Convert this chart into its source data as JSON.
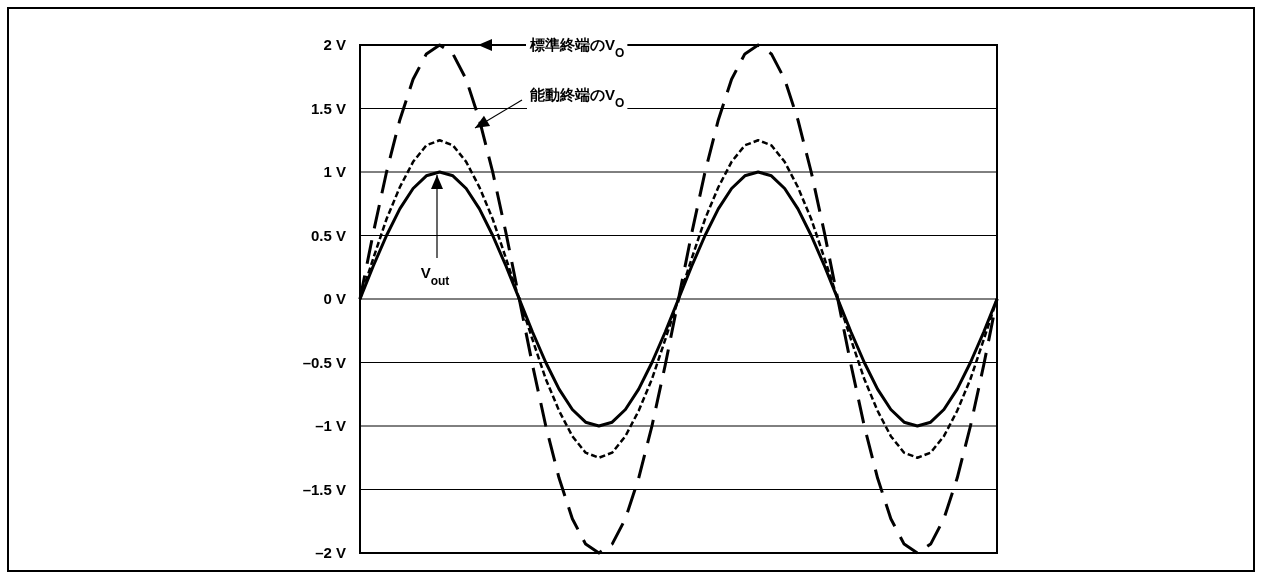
{
  "chart_data": {
    "type": "line",
    "categories": [
      null,
      null,
      null,
      null,
      null,
      null,
      null,
      null,
      null,
      null,
      null,
      null,
      null,
      null,
      null,
      null,
      null,
      null,
      null,
      null,
      null,
      null,
      null,
      null,
      null,
      null,
      null,
      null,
      null,
      null,
      null,
      null,
      null,
      null,
      null,
      null,
      null,
      null,
      null,
      null,
      null,
      null,
      null,
      null,
      null,
      null,
      null,
      null,
      null
    ],
    "series": [
      {
        "color": "#000000",
        "line_style": "dashed",
        "values": [
          0,
          0.52,
          1,
          1.41,
          1.73,
          1.93,
          2,
          1.93,
          1.73,
          1.41,
          1,
          0.52,
          0,
          -0.52,
          -1,
          -1.41,
          -1.73,
          -1.93,
          -2,
          -1.93,
          -1.73,
          -1.41,
          -1,
          -0.52,
          0,
          0.52,
          1,
          1.41,
          1.73,
          1.93,
          2,
          1.93,
          1.73,
          1.41,
          1,
          0.52,
          0,
          -0.52,
          -1,
          -1.41,
          -1.73,
          -1.93,
          -2,
          -1.93,
          -1.73,
          -1.41,
          -1,
          -0.52,
          0
        ]
      },
      {
        "color": "#000000",
        "line_style": "dotted",
        "values": [
          0,
          0.32,
          0.63,
          0.88,
          1.08,
          1.21,
          1.25,
          1.21,
          1.08,
          0.88,
          0.63,
          0.32,
          0,
          -0.32,
          -0.63,
          -0.88,
          -1.08,
          -1.21,
          -1.25,
          -1.21,
          -1.08,
          -0.88,
          -0.63,
          -0.32,
          0,
          0.32,
          0.63,
          0.88,
          1.08,
          1.21,
          1.25,
          1.21,
          1.08,
          0.88,
          0.63,
          0.32,
          0,
          -0.32,
          -0.63,
          -0.88,
          -1.08,
          -1.21,
          -1.25,
          -1.21,
          -1.08,
          -0.88,
          -0.63,
          -0.32,
          0
        ]
      },
      {
        "color": "#000000",
        "line_style": "solid",
        "values": [
          0,
          0.26,
          0.5,
          0.71,
          0.87,
          0.97,
          1,
          0.97,
          0.87,
          0.71,
          0.5,
          0.26,
          0,
          -0.26,
          -0.5,
          -0.71,
          -0.87,
          -0.97,
          -1,
          -0.97,
          -0.87,
          -0.71,
          -0.5,
          -0.26,
          0,
          0.26,
          0.5,
          0.71,
          0.87,
          0.97,
          1,
          0.97,
          0.87,
          0.71,
          0.5,
          0.26,
          0,
          -0.26,
          -0.5,
          -0.71,
          -0.87,
          -0.97,
          -1,
          -0.97,
          -0.87,
          -0.71,
          -0.5,
          -0.26,
          0
        ]
      }
    ],
    "ylim": [
      -2,
      2
    ],
    "yticks": [
      {
        "value": 2,
        "label": "2 V"
      },
      {
        "value": 1.5,
        "label": "1.5 V"
      },
      {
        "value": 1,
        "label": "1 V"
      },
      {
        "value": 0.5,
        "label": "0.5 V"
      },
      {
        "value": 0,
        "label": "0 V"
      },
      {
        "value": -0.5,
        "label": "–0.5 V"
      },
      {
        "value": -1,
        "label": "–1 V"
      },
      {
        "value": -1.5,
        "label": "–1.5 V"
      },
      {
        "value": -2,
        "label": "–2 V"
      }
    ],
    "grid": "y",
    "tick_labels": "y",
    "annotations": [
      "標準終端のV$_{O}$",
      "能動終端のV$_{O}$",
      "V$_{out}$"
    ]
  }
}
